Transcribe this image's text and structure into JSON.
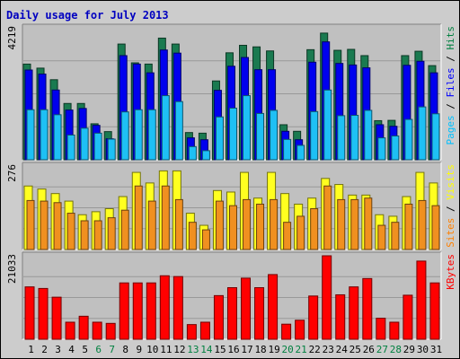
{
  "chart_data": {
    "type": "bar",
    "title": "Daily usage for July 2013",
    "categories": [
      "1",
      "2",
      "3",
      "4",
      "5",
      "6",
      "7",
      "8",
      "9",
      "10",
      "11",
      "12",
      "13",
      "14",
      "15",
      "16",
      "17",
      "18",
      "19",
      "20",
      "21",
      "22",
      "23",
      "24",
      "25",
      "26",
      "27",
      "28",
      "29",
      "30",
      "31"
    ],
    "weekend_days": [
      6,
      7,
      13,
      14,
      20,
      21,
      27,
      28
    ],
    "panels": [
      {
        "id": "hits",
        "ymax_label": "4219",
        "ymax": 4219,
        "legend": [
          {
            "text": "Pages",
            "color": "#00c0ff"
          },
          {
            "text": " / ",
            "color": "#000000"
          },
          {
            "text": "Files",
            "color": "#0000ff"
          },
          {
            "text": " / ",
            "color": "#000000"
          },
          {
            "text": "Hits",
            "color": "#008040"
          }
        ],
        "series": [
          {
            "name": "Hits",
            "color": "#1a7a50",
            "values": [
              3060,
              2930,
              2560,
              1800,
              1800,
              1150,
              900,
              3700,
              3100,
              3060,
              3890,
              3700,
              870,
              850,
              2520,
              3420,
              3660,
              3610,
              3480,
              1120,
              910,
              3520,
              4050,
              3500,
              3530,
              3330,
              1250,
              1260,
              3330,
              3470,
              3010
            ]
          },
          {
            "name": "Files",
            "color": "#0000ee",
            "values": [
              2870,
              2740,
              2230,
              1590,
              1640,
              1100,
              670,
              3330,
              3060,
              2780,
              3510,
              3410,
              700,
              640,
              2220,
              2990,
              3270,
              2880,
              2880,
              910,
              640,
              3120,
              3770,
              3080,
              3030,
              2940,
              1120,
              1070,
              3020,
              3150,
              2780
            ]
          },
          {
            "name": "Pages",
            "color": "#1ec0f5",
            "values": [
              1600,
              1600,
              1440,
              790,
              1010,
              850,
              660,
              1530,
              1600,
              1600,
              2050,
              1860,
              420,
              290,
              1370,
              1650,
              2050,
              1480,
              1580,
              650,
              460,
              1540,
              2230,
              1410,
              1420,
              1580,
              700,
              760,
              1290,
              1690,
              1470
            ]
          }
        ]
      },
      {
        "id": "visits",
        "ymax_label": "276",
        "ymax": 276,
        "legend": [
          {
            "text": "Sites",
            "color": "#ff8000"
          },
          {
            "text": " / ",
            "color": "#000000"
          },
          {
            "text": "Visits",
            "color": "#ffff00"
          }
        ],
        "series": [
          {
            "name": "Visits",
            "color": "#ffff20",
            "values": [
              210,
              200,
              185,
              160,
              115,
              125,
              135,
              175,
              255,
              220,
              260,
              260,
              120,
              80,
              195,
              190,
              255,
              170,
              255,
              185,
              150,
              170,
              235,
              215,
              180,
              180,
              115,
              110,
              175,
              255,
              220
            ]
          },
          {
            "name": "Sites",
            "color": "#f09020",
            "values": [
              162,
              160,
              155,
              120,
              95,
              95,
              105,
              130,
              210,
              160,
              210,
              165,
              90,
              65,
              160,
              145,
              165,
              150,
              165,
              90,
              110,
              135,
              210,
              165,
              165,
              170,
              80,
              90,
              150,
              162,
              145
            ]
          }
        ]
      },
      {
        "id": "kbytes",
        "ymax_label": "21033",
        "ymax": 21033,
        "legend": [
          {
            "text": "KBytes",
            "color": "#ff0000"
          }
        ],
        "series": [
          {
            "name": "KBytes",
            "color": "#ff0000",
            "values": [
              13200,
              12800,
              10600,
              4300,
              5800,
              4300,
              4000,
              14200,
              14200,
              14200,
              16000,
              15800,
              3700,
              4300,
              11000,
              13000,
              15400,
              13000,
              16300,
              3800,
              4800,
              10900,
              21033,
              11200,
              13200,
              15300,
              5300,
              4300,
              11100,
              19700,
              14200
            ]
          }
        ]
      }
    ]
  }
}
